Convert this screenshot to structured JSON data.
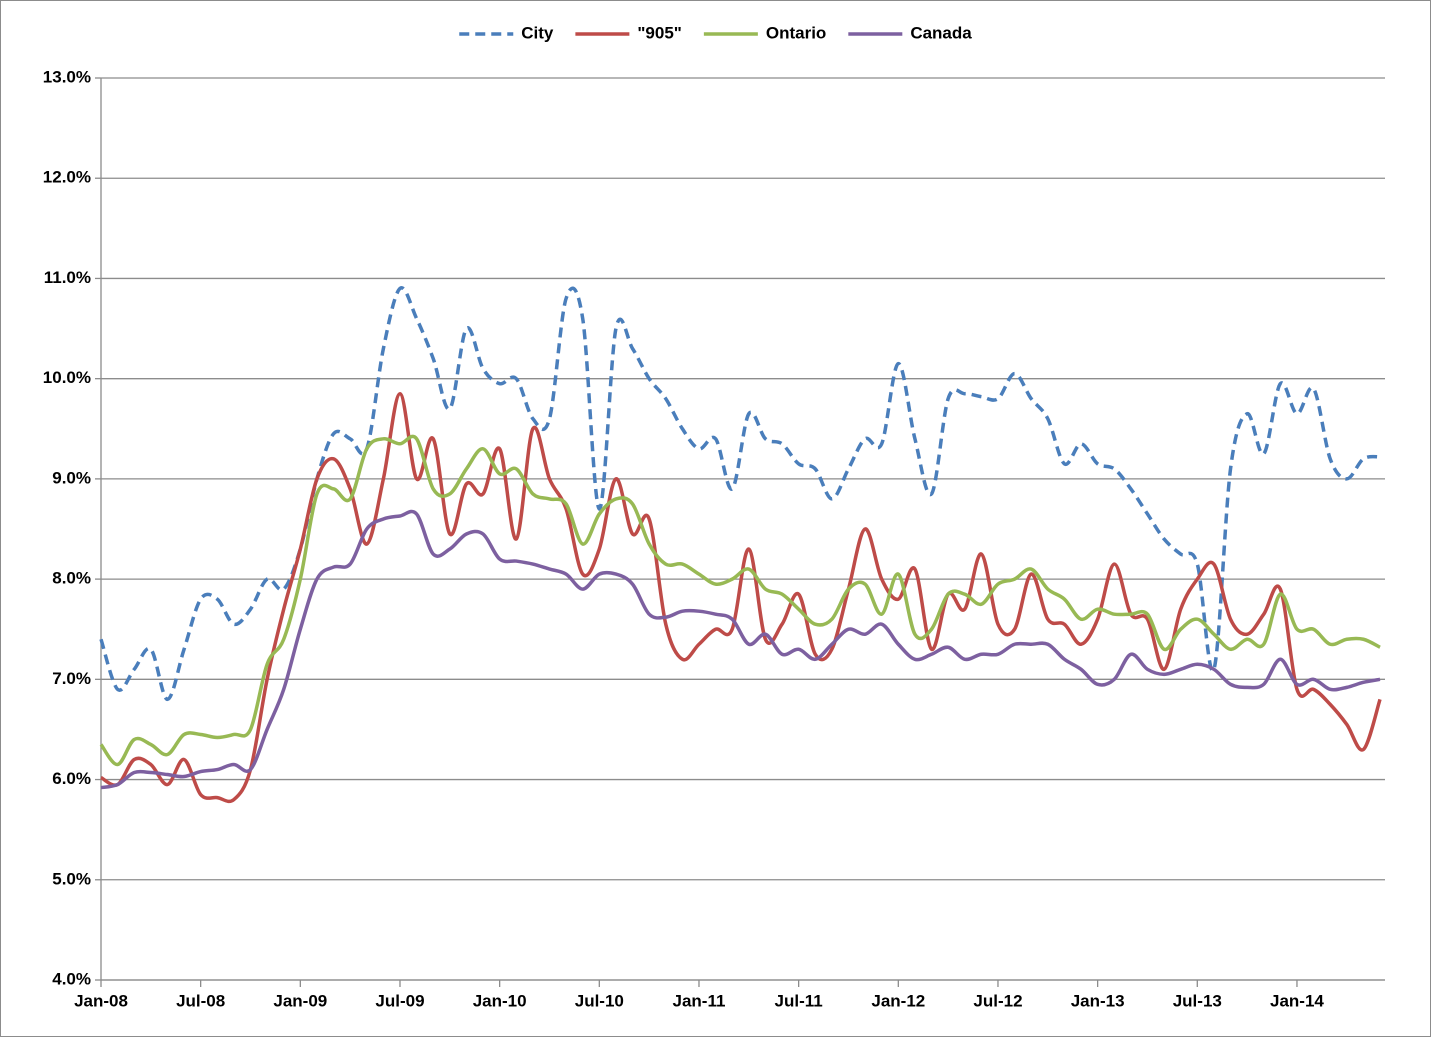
{
  "chart_data": {
    "type": "line",
    "categories": [
      "Jan-08",
      null,
      null,
      null,
      null,
      null,
      "Jul-08",
      null,
      null,
      null,
      null,
      null,
      "Jan-09",
      null,
      null,
      null,
      null,
      null,
      "Jul-09",
      null,
      null,
      null,
      null,
      null,
      "Jan-10",
      null,
      null,
      null,
      null,
      null,
      "Jul-10",
      null,
      null,
      null,
      null,
      null,
      "Jan-11",
      null,
      null,
      null,
      null,
      null,
      "Jul-11",
      null,
      null,
      null,
      null,
      null,
      "Jan-12",
      null,
      null,
      null,
      null,
      null,
      "Jul-12",
      null,
      null,
      null,
      null,
      null,
      "Jan-13",
      null,
      null,
      null,
      null,
      null,
      "Jul-13",
      null,
      null,
      null,
      null,
      null,
      "Jan-14",
      null,
      null,
      null,
      null,
      null
    ],
    "series": [
      {
        "name": "City",
        "color": "#4a7ebb",
        "dashed": true,
        "values": [
          7.4,
          6.9,
          7.1,
          7.3,
          6.8,
          7.3,
          7.8,
          7.8,
          7.55,
          7.7,
          8.0,
          7.9,
          8.3,
          9.0,
          9.45,
          9.4,
          9.3,
          10.3,
          10.9,
          10.6,
          10.2,
          9.7,
          10.5,
          10.1,
          9.95,
          10.0,
          9.6,
          9.6,
          10.8,
          10.6,
          8.7,
          10.5,
          10.3,
          10.0,
          9.8,
          9.5,
          9.3,
          9.4,
          8.9,
          9.65,
          9.4,
          9.35,
          9.15,
          9.1,
          8.8,
          9.1,
          9.4,
          9.35,
          10.15,
          9.4,
          8.85,
          9.8,
          9.85,
          9.82,
          9.8,
          10.05,
          9.8,
          9.6,
          9.15,
          9.35,
          9.15,
          9.1,
          8.9,
          8.65,
          8.4,
          8.25,
          8.15,
          7.1,
          9.1,
          9.65,
          9.25,
          9.95,
          9.65,
          9.9,
          9.2,
          9.0,
          9.2,
          9.22
        ]
      },
      {
        "name": "\"905\"",
        "color": "#be4b48",
        "dashed": false,
        "values": [
          6.02,
          5.95,
          6.2,
          6.15,
          5.95,
          6.2,
          5.85,
          5.82,
          5.8,
          6.1,
          7.0,
          7.7,
          8.3,
          9.0,
          9.2,
          8.9,
          8.35,
          9.0,
          9.85,
          9.0,
          9.4,
          8.45,
          8.95,
          8.85,
          9.3,
          8.4,
          9.5,
          9.0,
          8.7,
          8.05,
          8.3,
          9.0,
          8.45,
          8.6,
          7.55,
          7.2,
          7.35,
          7.5,
          7.5,
          8.3,
          7.4,
          7.55,
          7.85,
          7.25,
          7.3,
          7.9,
          8.5,
          8.0,
          7.8,
          8.1,
          7.3,
          7.85,
          7.7,
          8.25,
          7.55,
          7.5,
          8.05,
          7.6,
          7.55,
          7.35,
          7.6,
          8.15,
          7.65,
          7.6,
          7.1,
          7.7,
          8.0,
          8.15,
          7.6,
          7.45,
          7.65,
          7.9,
          6.9,
          6.9,
          6.75,
          6.55,
          6.3,
          6.8
        ]
      },
      {
        "name": "Ontario",
        "color": "#98b954",
        "dashed": false,
        "values": [
          6.35,
          6.15,
          6.4,
          6.35,
          6.25,
          6.45,
          6.45,
          6.42,
          6.45,
          6.5,
          7.15,
          7.4,
          8.0,
          8.85,
          8.9,
          8.8,
          9.3,
          9.4,
          9.35,
          9.4,
          8.9,
          8.85,
          9.1,
          9.3,
          9.05,
          9.1,
          8.85,
          8.8,
          8.75,
          8.35,
          8.65,
          8.8,
          8.75,
          8.35,
          8.15,
          8.15,
          8.05,
          7.95,
          8.0,
          8.1,
          7.9,
          7.85,
          7.7,
          7.55,
          7.6,
          7.9,
          7.95,
          7.65,
          8.05,
          7.45,
          7.5,
          7.85,
          7.85,
          7.75,
          7.95,
          8.0,
          8.1,
          7.9,
          7.8,
          7.6,
          7.7,
          7.65,
          7.65,
          7.65,
          7.3,
          7.5,
          7.6,
          7.45,
          7.3,
          7.4,
          7.35,
          7.85,
          7.5,
          7.5,
          7.35,
          7.4,
          7.4,
          7.32
        ]
      },
      {
        "name": "Canada",
        "color": "#7d60a0",
        "dashed": false,
        "values": [
          5.92,
          5.95,
          6.07,
          6.07,
          6.05,
          6.03,
          6.08,
          6.1,
          6.15,
          6.1,
          6.5,
          6.9,
          7.5,
          8.0,
          8.12,
          8.15,
          8.5,
          8.6,
          8.63,
          8.65,
          8.25,
          8.3,
          8.45,
          8.45,
          8.2,
          8.18,
          8.15,
          8.1,
          8.05,
          7.9,
          8.05,
          8.05,
          7.95,
          7.65,
          7.62,
          7.68,
          7.68,
          7.65,
          7.6,
          7.35,
          7.45,
          7.25,
          7.3,
          7.2,
          7.35,
          7.5,
          7.45,
          7.55,
          7.35,
          7.2,
          7.25,
          7.32,
          7.2,
          7.25,
          7.25,
          7.35,
          7.35,
          7.35,
          7.2,
          7.1,
          6.95,
          7.0,
          7.25,
          7.1,
          7.05,
          7.1,
          7.15,
          7.1,
          6.95,
          6.92,
          6.95,
          7.2,
          6.95,
          7.0,
          6.9,
          6.92,
          6.97,
          7.0
        ]
      }
    ],
    "ylim": [
      4,
      13
    ],
    "yticks": [
      {
        "value": 4,
        "label": "4.0%"
      },
      {
        "value": 5,
        "label": "5.0%"
      },
      {
        "value": 6,
        "label": "6.0%"
      },
      {
        "value": 7,
        "label": "7.0%"
      },
      {
        "value": 8,
        "label": "8.0%"
      },
      {
        "value": 9,
        "label": "9.0%"
      },
      {
        "value": 10,
        "label": "10.0%"
      },
      {
        "value": 11,
        "label": "11.0%"
      },
      {
        "value": 12,
        "label": "12.0%"
      },
      {
        "value": 13,
        "label": "13.0%"
      }
    ],
    "grid": true,
    "legend": "top"
  }
}
